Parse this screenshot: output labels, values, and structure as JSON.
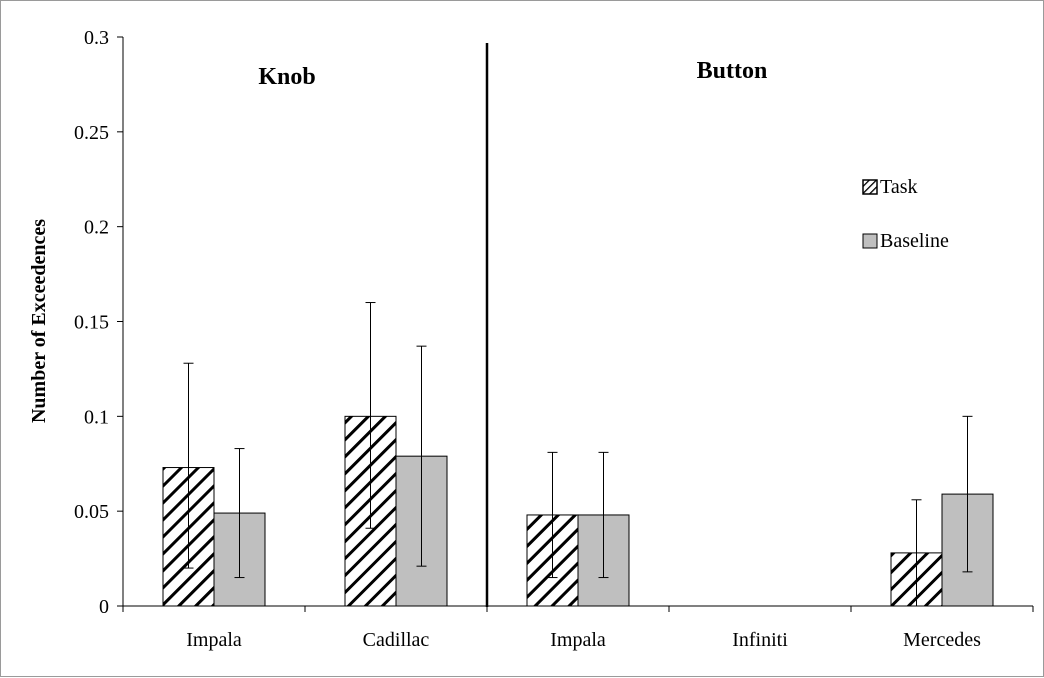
{
  "chart_data": {
    "type": "bar",
    "ylabel": "Number of Exceedences",
    "ylim": [
      0,
      0.3
    ],
    "yticks": [
      "0",
      "0.05",
      "0.1",
      "0.15",
      "0.2",
      "0.25",
      "0.3"
    ],
    "ytick_values": [
      0,
      0.05,
      0.1,
      0.15,
      0.2,
      0.25,
      0.3
    ],
    "categories": [
      "Impala",
      "Cadillac",
      "Impala",
      "Infiniti",
      "Mercedes"
    ],
    "groups": [
      {
        "title": "Knob",
        "categories": [
          0,
          1
        ]
      },
      {
        "title": "Button",
        "categories": [
          2,
          3,
          4
        ]
      }
    ],
    "divider_after_category": 1,
    "series": [
      {
        "name": "Task",
        "pattern": "diagonal-hatch",
        "color": "#ffffff",
        "values": [
          0.073,
          0.1,
          0.048,
          null,
          0.028
        ],
        "err_low": [
          0.02,
          0.041,
          0.015,
          null,
          0.0
        ],
        "err_high": [
          0.128,
          0.16,
          0.081,
          null,
          0.056
        ]
      },
      {
        "name": "Baseline",
        "pattern": "solid",
        "color": "#bfbfbf",
        "values": [
          0.049,
          0.079,
          0.048,
          null,
          0.059
        ],
        "err_low": [
          0.015,
          0.021,
          0.015,
          null,
          0.018
        ],
        "err_high": [
          0.083,
          0.137,
          0.081,
          null,
          0.1
        ]
      }
    ],
    "legend": [
      "Task",
      "Baseline"
    ],
    "legend_position": "right",
    "grid": false
  }
}
